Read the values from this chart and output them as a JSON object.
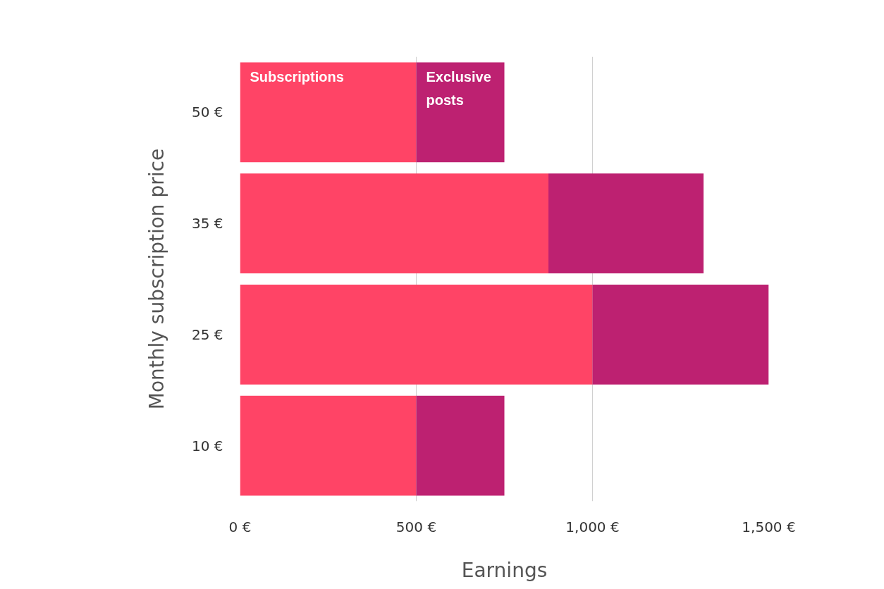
{
  "chart_data": {
    "type": "bar",
    "orientation": "horizontal",
    "stacked": true,
    "xlabel": "Earnings",
    "ylabel": "Monthly subscription price",
    "categories": [
      "50 €",
      "35 €",
      "25 €",
      "10 €"
    ],
    "series": [
      {
        "name": "Subscriptions",
        "color": "#ff4466",
        "values": [
          500,
          875,
          1000,
          500
        ]
      },
      {
        "name": "Exclusive posts",
        "color": "#bd2171",
        "values": [
          250,
          440,
          500,
          250
        ]
      }
    ],
    "xlim": [
      0,
      1500
    ],
    "xticks": [
      {
        "value": 0,
        "label": "0 €"
      },
      {
        "value": 500,
        "label": "500 €"
      },
      {
        "value": 1000,
        "label": "1,000 €"
      },
      {
        "value": 1500,
        "label": "1,500 €"
      }
    ],
    "grid": "x",
    "legend": false
  }
}
